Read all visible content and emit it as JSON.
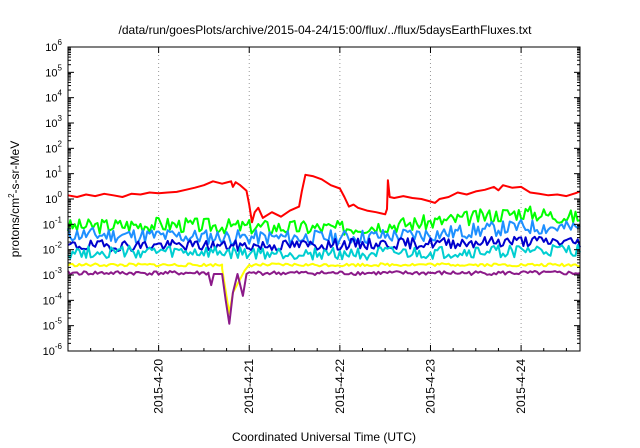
{
  "chart_data": {
    "type": "line",
    "title": "/data/run/goesPlots/archive/2015-04-24/15:00/flux/../flux/5daysEarthFluxes.txt",
    "xlabel": "Coordinated Universal Time (UTC)",
    "ylabel": {
      "prefix": "protons/cm",
      "sup": "2",
      "suffix": "-s-sr-MeV"
    },
    "yscale": "log",
    "ylim_exp": [
      -6,
      6
    ],
    "y_ticks": [
      {
        "base": "10",
        "exp": "-6",
        "value": -6
      },
      {
        "base": "10",
        "exp": "-5",
        "value": -5
      },
      {
        "base": "10",
        "exp": "-4",
        "value": -4
      },
      {
        "base": "10",
        "exp": "-3",
        "value": -3
      },
      {
        "base": "10",
        "exp": "-2",
        "value": -2
      },
      {
        "base": "10",
        "exp": "-1",
        "value": -1
      },
      {
        "base": "10",
        "exp": "0",
        "value": 0
      },
      {
        "base": "10",
        "exp": "1",
        "value": 1
      },
      {
        "base": "10",
        "exp": "2",
        "value": 2
      },
      {
        "base": "10",
        "exp": "3",
        "value": 3
      },
      {
        "base": "10",
        "exp": "4",
        "value": 4
      },
      {
        "base": "10",
        "exp": "5",
        "value": 5
      },
      {
        "base": "10",
        "exp": "6",
        "value": 6
      }
    ],
    "x_ticks": [
      {
        "label": "2015-4-20",
        "day": 1.0
      },
      {
        "label": "2015-4-21",
        "day": 2.0
      },
      {
        "label": "2015-4-22",
        "day": 3.0
      },
      {
        "label": "2015-4-23",
        "day": 4.0
      },
      {
        "label": "2015-4-24",
        "day": 5.0
      }
    ],
    "xlim_day": [
      0.0,
      5.65
    ],
    "grid": true,
    "series": [
      {
        "color": "#ff0000",
        "width": 2,
        "points": [
          [
            0.0,
            1.4
          ],
          [
            0.1,
            1.2
          ],
          [
            0.2,
            1.5
          ],
          [
            0.3,
            1.3
          ],
          [
            0.4,
            1.6
          ],
          [
            0.5,
            1.4
          ],
          [
            0.6,
            1.2
          ],
          [
            0.7,
            1.6
          ],
          [
            0.8,
            1.5
          ],
          [
            0.9,
            1.8
          ],
          [
            1.0,
            1.7
          ],
          [
            1.1,
            1.8
          ],
          [
            1.2,
            1.9
          ],
          [
            1.3,
            2.3
          ],
          [
            1.4,
            2.8
          ],
          [
            1.5,
            3.5
          ],
          [
            1.6,
            5.0
          ],
          [
            1.7,
            4.0
          ],
          [
            1.75,
            4.5
          ],
          [
            1.8,
            5.0
          ],
          [
            1.82,
            3.0
          ],
          [
            1.85,
            4.6
          ],
          [
            1.9,
            3.5
          ],
          [
            1.97,
            2.1
          ],
          [
            2.0,
            0.6
          ],
          [
            2.03,
            0.12
          ],
          [
            2.06,
            0.3
          ],
          [
            2.1,
            0.45
          ],
          [
            2.15,
            0.18
          ],
          [
            2.25,
            0.3
          ],
          [
            2.35,
            0.2
          ],
          [
            2.45,
            0.35
          ],
          [
            2.55,
            0.5
          ],
          [
            2.58,
            2.0
          ],
          [
            2.62,
            9.0
          ],
          [
            2.7,
            8.0
          ],
          [
            2.8,
            6.0
          ],
          [
            2.9,
            3.5
          ],
          [
            3.0,
            2.6
          ],
          [
            3.05,
            1.2
          ],
          [
            3.1,
            0.5
          ],
          [
            3.15,
            0.6
          ],
          [
            3.2,
            0.45
          ],
          [
            3.3,
            0.35
          ],
          [
            3.4,
            0.3
          ],
          [
            3.5,
            0.25
          ],
          [
            3.52,
            0.4
          ],
          [
            3.53,
            5.5
          ],
          [
            3.55,
            1.2
          ],
          [
            3.6,
            1.1
          ],
          [
            3.7,
            1.3
          ],
          [
            3.8,
            1.1
          ],
          [
            3.9,
            1.0
          ],
          [
            4.0,
            0.8
          ],
          [
            4.05,
            0.7
          ],
          [
            4.1,
            1.0
          ],
          [
            4.2,
            1.2
          ],
          [
            4.3,
            1.8
          ],
          [
            4.4,
            1.5
          ],
          [
            4.5,
            2.0
          ],
          [
            4.6,
            2.3
          ],
          [
            4.7,
            3.0
          ],
          [
            4.75,
            2.2
          ],
          [
            4.8,
            3.5
          ],
          [
            4.9,
            2.8
          ],
          [
            5.0,
            3.0
          ],
          [
            5.1,
            1.8
          ],
          [
            5.2,
            1.6
          ],
          [
            5.3,
            1.4
          ],
          [
            5.4,
            1.5
          ],
          [
            5.5,
            1.3
          ],
          [
            5.6,
            1.7
          ],
          [
            5.65,
            2.0
          ]
        ]
      },
      {
        "color": "#00ff00",
        "width": 2,
        "base": [
          [
            0.0,
            0.08
          ],
          [
            1.0,
            0.1
          ],
          [
            2.0,
            0.08
          ],
          [
            3.0,
            0.07
          ],
          [
            4.0,
            0.12
          ],
          [
            5.0,
            0.3
          ],
          [
            5.65,
            0.18
          ]
        ],
        "amp": 0.3,
        "seed": 3
      },
      {
        "color": "#1e90ff",
        "width": 2,
        "base": [
          [
            0.0,
            0.04
          ],
          [
            1.0,
            0.035
          ],
          [
            2.0,
            0.03
          ],
          [
            3.0,
            0.03
          ],
          [
            4.0,
            0.04
          ],
          [
            5.0,
            0.08
          ],
          [
            5.65,
            0.07
          ]
        ],
        "amp": 0.3,
        "seed": 11
      },
      {
        "color": "#0000cd",
        "width": 2,
        "base": [
          [
            0.0,
            0.014
          ],
          [
            1.0,
            0.015
          ],
          [
            2.0,
            0.014
          ],
          [
            3.0,
            0.016
          ],
          [
            4.0,
            0.018
          ],
          [
            5.0,
            0.022
          ],
          [
            5.65,
            0.02
          ]
        ],
        "amp": 0.22,
        "seed": 19
      },
      {
        "color": "#00ced1",
        "width": 2,
        "base": [
          [
            0.0,
            0.008
          ],
          [
            1.0,
            0.008
          ],
          [
            2.0,
            0.007
          ],
          [
            3.0,
            0.007
          ],
          [
            4.0,
            0.007
          ],
          [
            5.0,
            0.009
          ],
          [
            5.65,
            0.009
          ]
        ],
        "amp": 0.25,
        "seed": 27
      },
      {
        "color": "#ffff00",
        "width": 2,
        "base": [
          [
            0.0,
            0.0025
          ],
          [
            1.0,
            0.0025
          ],
          [
            2.0,
            0.0025
          ],
          [
            3.0,
            0.0025
          ],
          [
            4.0,
            0.0026
          ],
          [
            5.0,
            0.0025
          ],
          [
            5.65,
            0.0025
          ]
        ],
        "amp": 0.06,
        "seed": 33,
        "dip": [
          [
            1.7,
            0.0018
          ],
          [
            1.78,
            3e-05
          ],
          [
            1.82,
            0.0002
          ],
          [
            1.95,
            0.0015
          ],
          [
            2.0,
            0.0025
          ]
        ]
      },
      {
        "color": "#8b1a89",
        "width": 2,
        "base": [
          [
            0.0,
            0.0012
          ],
          [
            1.0,
            0.0012
          ],
          [
            2.0,
            0.0012
          ],
          [
            3.0,
            0.0012
          ],
          [
            4.0,
            0.0012
          ],
          [
            5.0,
            0.0012
          ],
          [
            5.65,
            0.0012
          ]
        ],
        "amp": 0.08,
        "seed": 41,
        "dip": [
          [
            1.55,
            0.0011
          ],
          [
            1.58,
            0.0004
          ],
          [
            1.61,
            0.0011
          ],
          [
            1.7,
            0.0011
          ],
          [
            1.74,
            0.0001
          ],
          [
            1.78,
            1.2e-05
          ],
          [
            1.82,
            0.0002
          ],
          [
            1.87,
            0.0011
          ],
          [
            1.93,
            0.00015
          ],
          [
            1.97,
            0.0011
          ]
        ]
      }
    ]
  }
}
